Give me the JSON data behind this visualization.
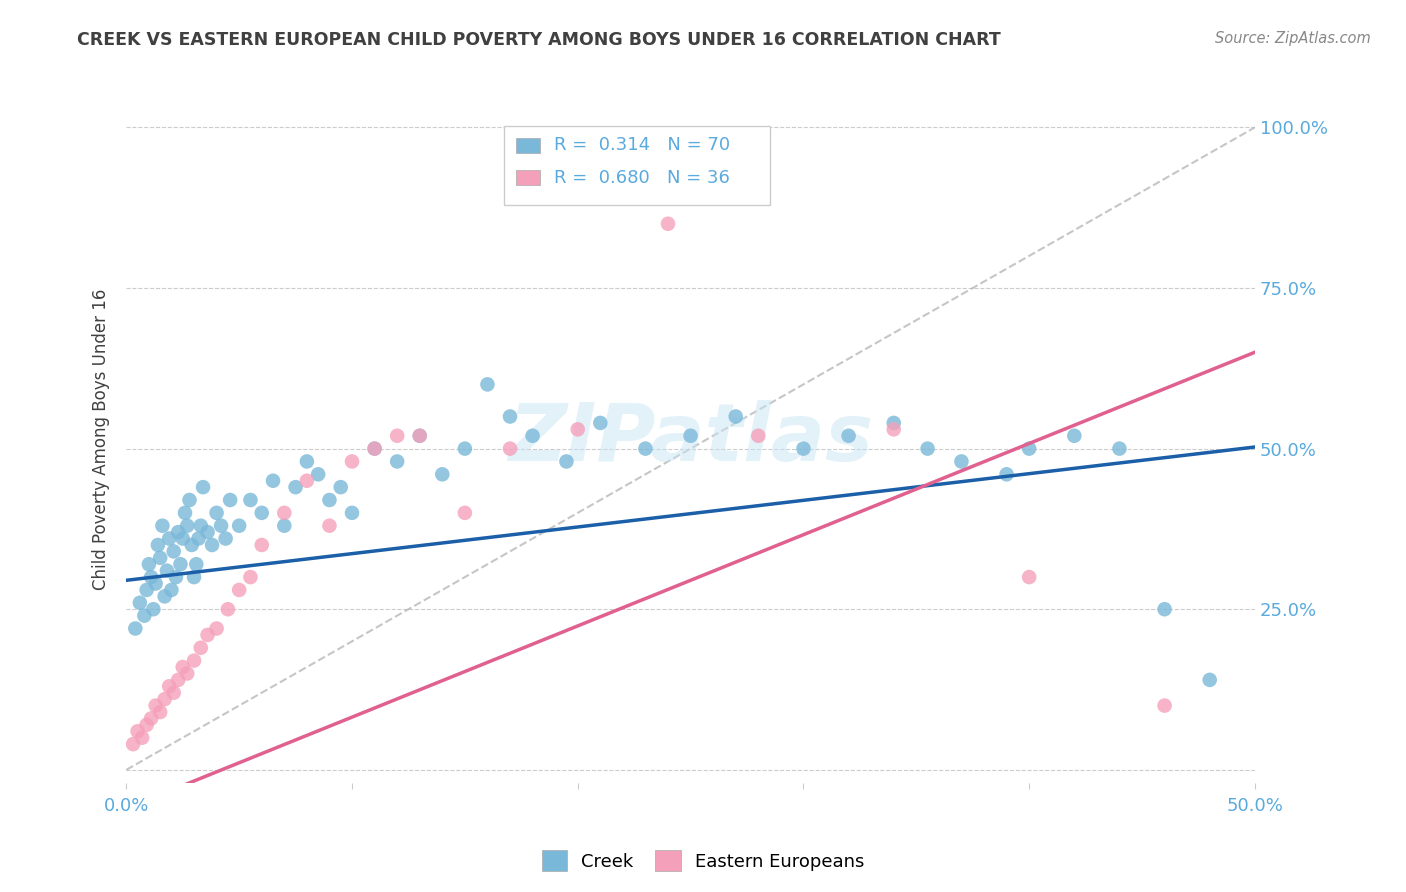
{
  "title": "CREEK VS EASTERN EUROPEAN CHILD POVERTY AMONG BOYS UNDER 16 CORRELATION CHART",
  "source": "Source: ZipAtlas.com",
  "ylabel": "Child Poverty Among Boys Under 16",
  "xlim": [
    0.0,
    0.5
  ],
  "ylim": [
    -0.02,
    1.05
  ],
  "yticks": [
    0.0,
    0.25,
    0.5,
    0.75,
    1.0
  ],
  "yticklabels": [
    "",
    "25.0%",
    "50.0%",
    "75.0%",
    "100.0%"
  ],
  "creek_color": "#7ab8d9",
  "eastern_color": "#f5a0ba",
  "creek_line_color": "#1a5fa8",
  "eastern_line_color": "#e06090",
  "diag_color": "#b8b8b8",
  "watermark": "ZIPatlas",
  "creek_R": 0.314,
  "creek_N": 70,
  "eastern_R": 0.68,
  "eastern_N": 36,
  "creek_intercept": 0.295,
  "creek_slope": 0.415,
  "eastern_intercept": -0.06,
  "eastern_slope": 1.42,
  "creek_x": [
    0.004,
    0.006,
    0.008,
    0.009,
    0.01,
    0.011,
    0.012,
    0.013,
    0.014,
    0.015,
    0.016,
    0.017,
    0.018,
    0.019,
    0.02,
    0.021,
    0.022,
    0.023,
    0.024,
    0.025,
    0.026,
    0.027,
    0.028,
    0.029,
    0.03,
    0.031,
    0.032,
    0.033,
    0.034,
    0.036,
    0.038,
    0.04,
    0.042,
    0.044,
    0.046,
    0.05,
    0.055,
    0.06,
    0.065,
    0.07,
    0.075,
    0.08,
    0.085,
    0.09,
    0.095,
    0.1,
    0.11,
    0.12,
    0.13,
    0.14,
    0.15,
    0.16,
    0.17,
    0.18,
    0.195,
    0.21,
    0.23,
    0.25,
    0.27,
    0.3,
    0.32,
    0.34,
    0.355,
    0.37,
    0.39,
    0.4,
    0.42,
    0.44,
    0.46,
    0.48
  ],
  "creek_y": [
    0.22,
    0.26,
    0.24,
    0.28,
    0.32,
    0.3,
    0.25,
    0.29,
    0.35,
    0.33,
    0.38,
    0.27,
    0.31,
    0.36,
    0.28,
    0.34,
    0.3,
    0.37,
    0.32,
    0.36,
    0.4,
    0.38,
    0.42,
    0.35,
    0.3,
    0.32,
    0.36,
    0.38,
    0.44,
    0.37,
    0.35,
    0.4,
    0.38,
    0.36,
    0.42,
    0.38,
    0.42,
    0.4,
    0.45,
    0.38,
    0.44,
    0.48,
    0.46,
    0.42,
    0.44,
    0.4,
    0.5,
    0.48,
    0.52,
    0.46,
    0.5,
    0.6,
    0.55,
    0.52,
    0.48,
    0.54,
    0.5,
    0.52,
    0.55,
    0.5,
    0.52,
    0.54,
    0.5,
    0.48,
    0.46,
    0.5,
    0.52,
    0.5,
    0.25,
    0.14
  ],
  "eastern_x": [
    0.003,
    0.005,
    0.007,
    0.009,
    0.011,
    0.013,
    0.015,
    0.017,
    0.019,
    0.021,
    0.023,
    0.025,
    0.027,
    0.03,
    0.033,
    0.036,
    0.04,
    0.045,
    0.05,
    0.055,
    0.06,
    0.07,
    0.08,
    0.09,
    0.1,
    0.11,
    0.12,
    0.13,
    0.15,
    0.17,
    0.2,
    0.24,
    0.28,
    0.34,
    0.4,
    0.46
  ],
  "eastern_y": [
    0.04,
    0.06,
    0.05,
    0.07,
    0.08,
    0.1,
    0.09,
    0.11,
    0.13,
    0.12,
    0.14,
    0.16,
    0.15,
    0.17,
    0.19,
    0.21,
    0.22,
    0.25,
    0.28,
    0.3,
    0.35,
    0.4,
    0.45,
    0.38,
    0.48,
    0.5,
    0.52,
    0.52,
    0.4,
    0.5,
    0.53,
    0.85,
    0.52,
    0.53,
    0.3,
    0.1
  ],
  "background_color": "#ffffff",
  "grid_color": "#cccccc",
  "title_color": "#404040",
  "axis_color": "#5aaadd"
}
